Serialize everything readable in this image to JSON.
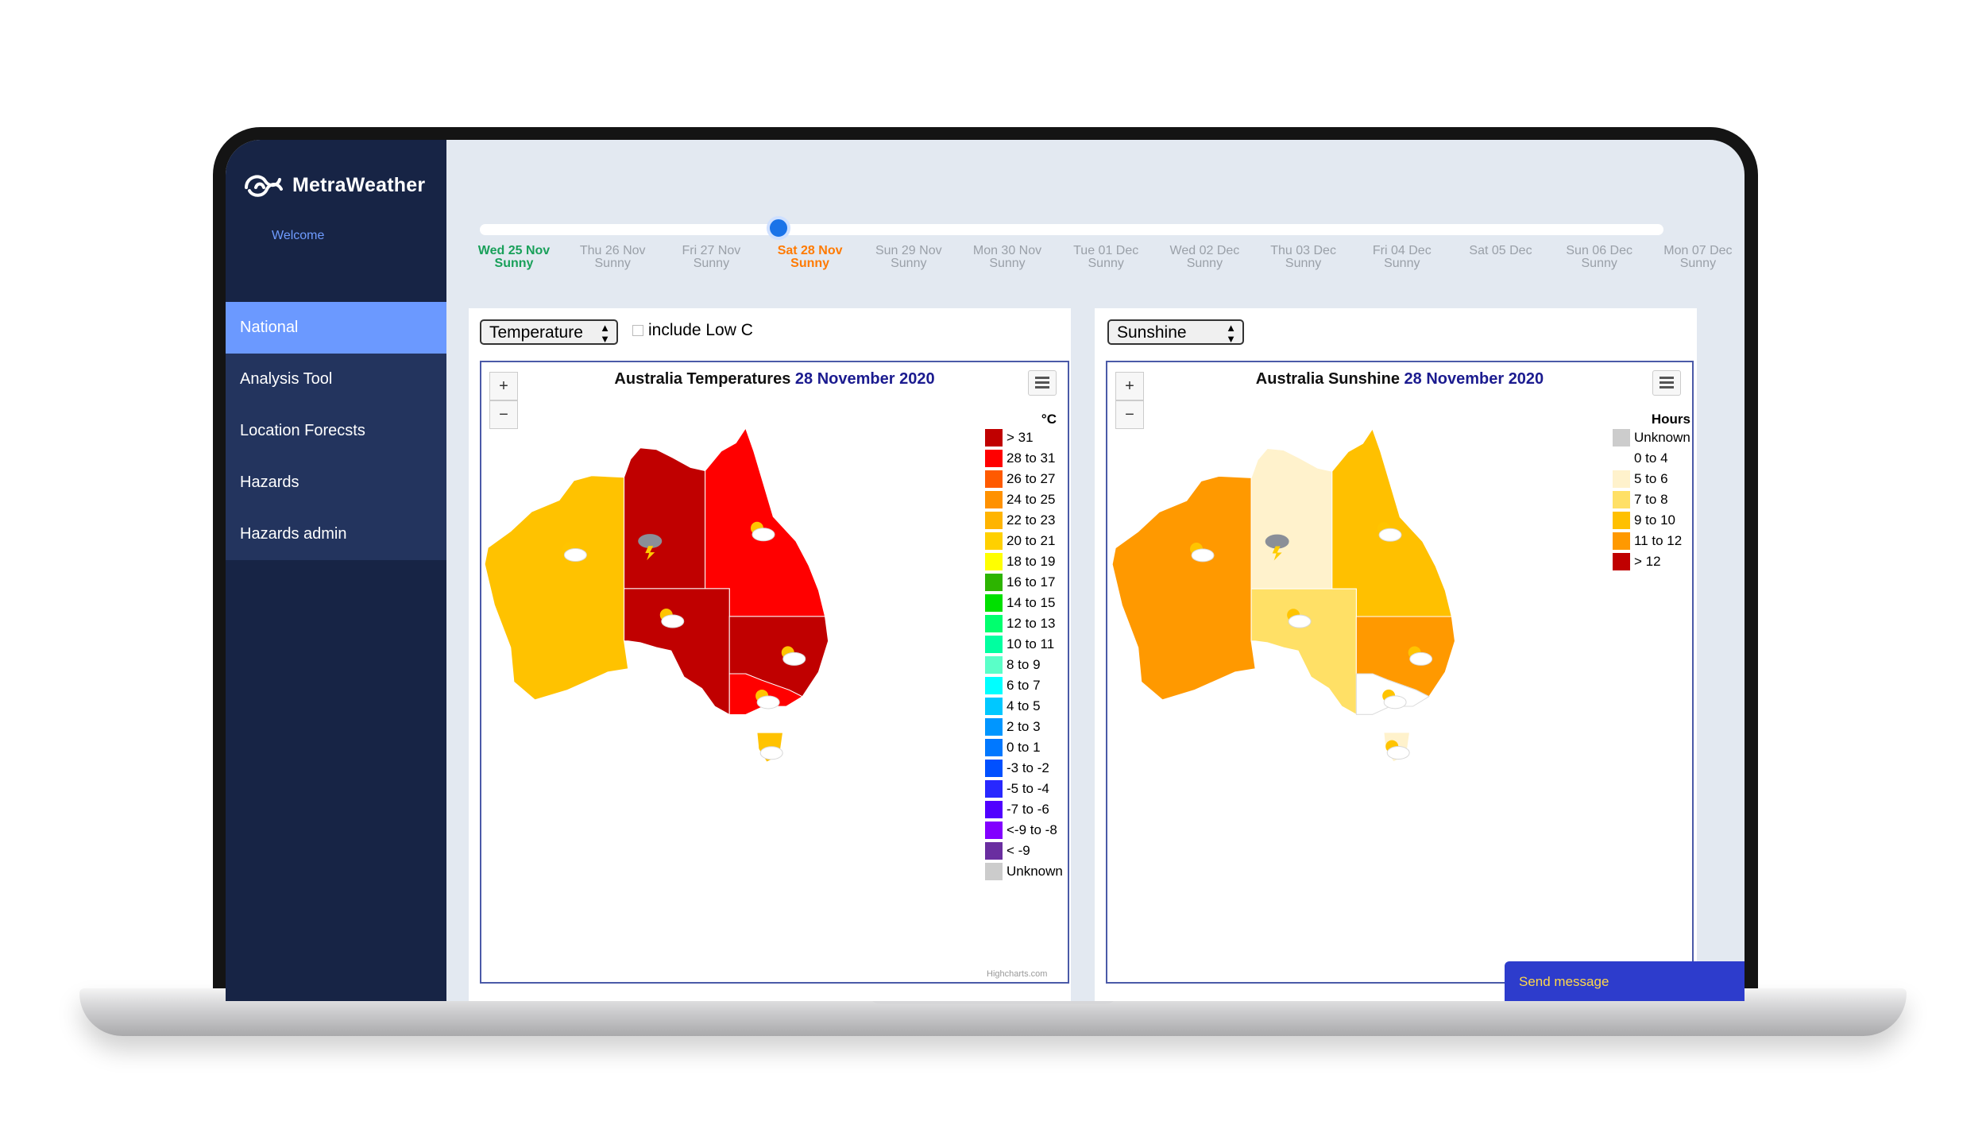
{
  "app": {
    "brand": "MetraWeather",
    "welcome": "Welcome"
  },
  "nav": {
    "items": [
      {
        "label": "National",
        "active": true
      },
      {
        "label": "Analysis Tool"
      },
      {
        "label": "Location Forecsts"
      },
      {
        "label": "Hazards"
      },
      {
        "label": "Hazards admin"
      }
    ]
  },
  "timeline": {
    "selected_index": 3,
    "days": [
      {
        "date": "Wed 25 Nov",
        "cond": "Sunny"
      },
      {
        "date": "Thu 26 Nov",
        "cond": "Sunny"
      },
      {
        "date": "Fri 27 Nov",
        "cond": "Sunny"
      },
      {
        "date": "Sat 28 Nov",
        "cond": "Sunny"
      },
      {
        "date": "Sun 29 Nov",
        "cond": "Sunny"
      },
      {
        "date": "Mon 30 Nov",
        "cond": "Sunny"
      },
      {
        "date": "Tue 01 Dec",
        "cond": "Sunny"
      },
      {
        "date": "Wed 02 Dec",
        "cond": "Sunny"
      },
      {
        "date": "Thu 03 Dec",
        "cond": "Sunny"
      },
      {
        "date": "Fri 04 Dec",
        "cond": "Sunny"
      },
      {
        "date": "Sat 05 Dec",
        "cond": ""
      },
      {
        "date": "Sun 06 Dec",
        "cond": "Sunny"
      },
      {
        "date": "Mon 07 Dec",
        "cond": "Sunny"
      }
    ]
  },
  "left_panel": {
    "select_value": "Temperature",
    "checkbox_label": "include Low C",
    "title": "Australia Temperatures",
    "date": "28 November 2020",
    "zoom_in": "+",
    "zoom_out": "−",
    "credit": "Highcharts.com",
    "legend_title": "°C",
    "legend": [
      {
        "label": "> 31",
        "color": "#c00000"
      },
      {
        "label": "28 to 31",
        "color": "#ff0000"
      },
      {
        "label": "26 to 27",
        "color": "#ff5a00"
      },
      {
        "label": "24 to 25",
        "color": "#ff9100"
      },
      {
        "label": "22 to 23",
        "color": "#ffb400"
      },
      {
        "label": "20 to 21",
        "color": "#ffd000"
      },
      {
        "label": "18 to 19",
        "color": "#ffff00"
      },
      {
        "label": "16 to 17",
        "color": "#2db400"
      },
      {
        "label": "14 to 15",
        "color": "#00e000"
      },
      {
        "label": "12 to 13",
        "color": "#00ff6e"
      },
      {
        "label": "10 to 11",
        "color": "#00ffa0"
      },
      {
        "label": "8 to 9",
        "color": "#5affc8"
      },
      {
        "label": "6 to 7",
        "color": "#00ffff"
      },
      {
        "label": "4 to 5",
        "color": "#00c8ff"
      },
      {
        "label": "2 to 3",
        "color": "#0096ff"
      },
      {
        "label": "0 to 1",
        "color": "#0078ff"
      },
      {
        "label": "-3 to -2",
        "color": "#0050ff"
      },
      {
        "label": "-5 to -4",
        "color": "#2828ff"
      },
      {
        "label": "-7 to -6",
        "color": "#5000ff"
      },
      {
        "label": "<-9 to -8",
        "color": "#8200ff"
      },
      {
        "label": "< -9",
        "color": "#6a2ea0"
      },
      {
        "label": "Unknown",
        "color": "#cccccc"
      }
    ],
    "regions": {
      "wa": "#ffc200",
      "nt": "#c00000",
      "qld": "#ff0000",
      "sa": "#c00000",
      "nsw": "#c00000",
      "vic": "#ff0000",
      "tas": "#ffc200"
    }
  },
  "right_panel": {
    "select_value": "Sunshine",
    "title": "Australia Sunshine",
    "date": "28 November 2020",
    "zoom_in": "+",
    "zoom_out": "−",
    "legend_title": "Hours",
    "legend": [
      {
        "label": "Unknown",
        "color": "#cccccc"
      },
      {
        "label": "0 to 4",
        "color": "#ffffff"
      },
      {
        "label": "5 to 6",
        "color": "#fff2cc"
      },
      {
        "label": "7 to 8",
        "color": "#ffe066"
      },
      {
        "label": "9 to 10",
        "color": "#ffc000"
      },
      {
        "label": "11 to 12",
        "color": "#ff9900"
      },
      {
        "label": "> 12",
        "color": "#c00000"
      }
    ],
    "regions": {
      "wa": "#ff9900",
      "nt": "#fff2cc",
      "qld": "#ffc000",
      "sa": "#ffe066",
      "nsw": "#ff9900",
      "vic": "#ffffff",
      "tas": "#fff2cc"
    }
  },
  "send_message": "Send message"
}
